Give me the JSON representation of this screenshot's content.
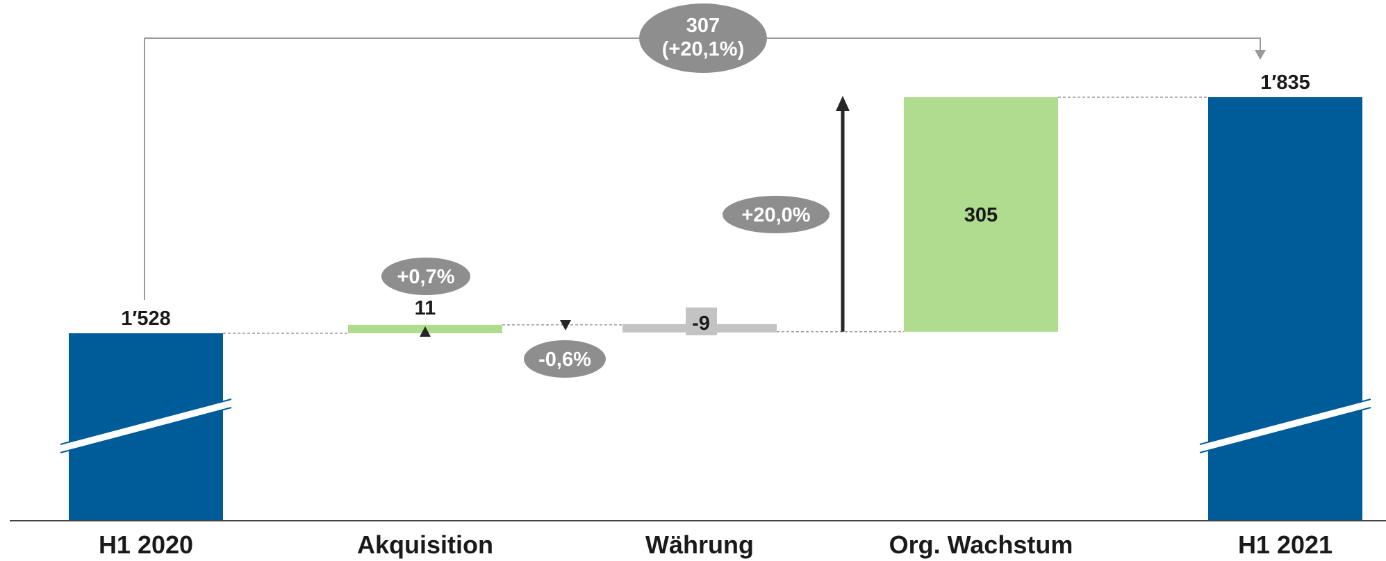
{
  "chart_data": {
    "type": "waterfall",
    "title": "",
    "categories": [
      "H1 2020",
      "Akquisition",
      "Währung",
      "Org. Wachstum",
      "H1 2021"
    ],
    "steps": [
      {
        "category": "H1 2020",
        "kind": "total",
        "value": 1528,
        "label": "1′528"
      },
      {
        "category": "Akquisition",
        "kind": "delta",
        "value": 11,
        "label": "11",
        "pct_label": "+0,7%"
      },
      {
        "category": "Währung",
        "kind": "delta",
        "value": -9,
        "label": "-9",
        "pct_label": "-0,6%"
      },
      {
        "category": "Org. Wachstum",
        "kind": "delta",
        "value": 305,
        "label": "305",
        "pct_label": "+20,0%"
      },
      {
        "category": "H1 2021",
        "kind": "total",
        "value": 1835,
        "label": "1′835"
      }
    ],
    "total_change": {
      "value_label": "307",
      "pct_label": "(+20,1%)"
    },
    "axis_break": true,
    "colors": {
      "total": "#005b99",
      "increase": "#b0dc8f",
      "decrease": "#c3c3c3",
      "pill": "#8e8e8e",
      "arrow": "#262626",
      "connector": "#9a9a9a",
      "axis": "#444444"
    }
  }
}
